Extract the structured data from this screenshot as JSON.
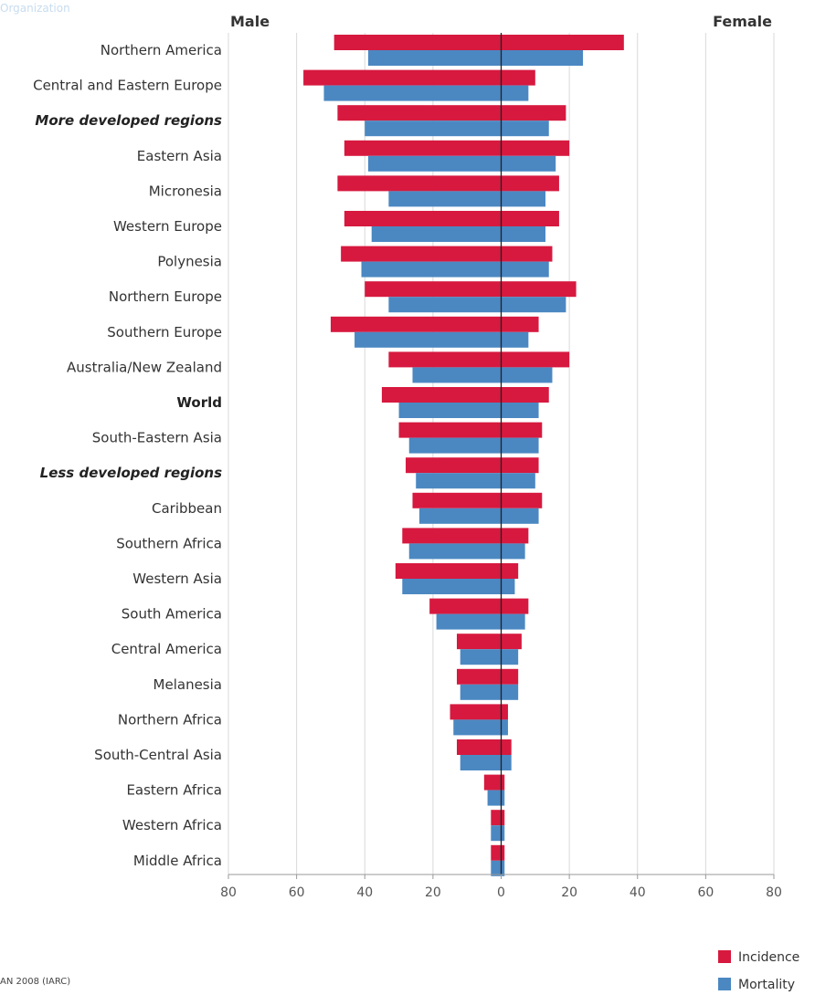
{
  "header": {
    "org_text": "Organization"
  },
  "footer": {
    "source": "AN 2008 (IARC)"
  },
  "chart_data": {
    "type": "bar",
    "orientation": "horizontal-population-pyramid",
    "title": "",
    "left_label": "Male",
    "right_label": "Female",
    "xlim": [
      -80,
      80
    ],
    "x_ticks": [
      -80,
      -60,
      -40,
      -20,
      0,
      20,
      40,
      60,
      80
    ],
    "x_tick_labels": [
      "80",
      "60",
      "40",
      "20",
      "0",
      "20",
      "40",
      "60",
      "80"
    ],
    "grid": true,
    "legend_position": "bottom-right",
    "series_names": [
      "Incidence",
      "Mortality"
    ],
    "series_colors": {
      "incidence": "#d7193f",
      "mortality": "#4b88c2"
    },
    "categories": [
      "Northern America",
      "Central and Eastern Europe",
      "More developed regions",
      "Eastern Asia",
      "Micronesia",
      "Western Europe",
      "Polynesia",
      "Northern Europe",
      "Southern Europe",
      "Australia/New Zealand",
      "World",
      "South-Eastern Asia",
      "Less developed regions",
      "Caribbean",
      "Southern Africa",
      "Western Asia",
      "South America",
      "Central America",
      "Melanesia",
      "Northern Africa",
      "South-Central Asia",
      "Eastern Africa",
      "Western Africa",
      "Middle Africa"
    ],
    "category_styles": [
      "normal",
      "normal",
      "bold-italic",
      "normal",
      "normal",
      "normal",
      "normal",
      "normal",
      "normal",
      "normal",
      "bold",
      "normal",
      "bold-italic",
      "normal",
      "normal",
      "normal",
      "normal",
      "normal",
      "normal",
      "normal",
      "normal",
      "normal",
      "normal",
      "normal"
    ],
    "male_incidence": [
      49,
      58,
      48,
      46,
      48,
      46,
      47,
      40,
      50,
      33,
      35,
      30,
      28,
      26,
      29,
      31,
      21,
      13,
      13,
      15,
      13,
      5,
      3,
      3
    ],
    "male_mortality": [
      39,
      52,
      40,
      39,
      33,
      38,
      41,
      33,
      43,
      26,
      30,
      27,
      25,
      24,
      27,
      29,
      19,
      12,
      12,
      14,
      12,
      4,
      3,
      3
    ],
    "female_incidence": [
      36,
      10,
      19,
      20,
      17,
      17,
      15,
      22,
      11,
      20,
      14,
      12,
      11,
      12,
      8,
      5,
      8,
      6,
      5,
      2,
      3,
      1,
      1,
      1
    ],
    "female_mortality": [
      24,
      8,
      14,
      16,
      13,
      13,
      14,
      19,
      8,
      15,
      11,
      11,
      10,
      11,
      7,
      4,
      7,
      5,
      5,
      2,
      3,
      1,
      1,
      1
    ]
  }
}
